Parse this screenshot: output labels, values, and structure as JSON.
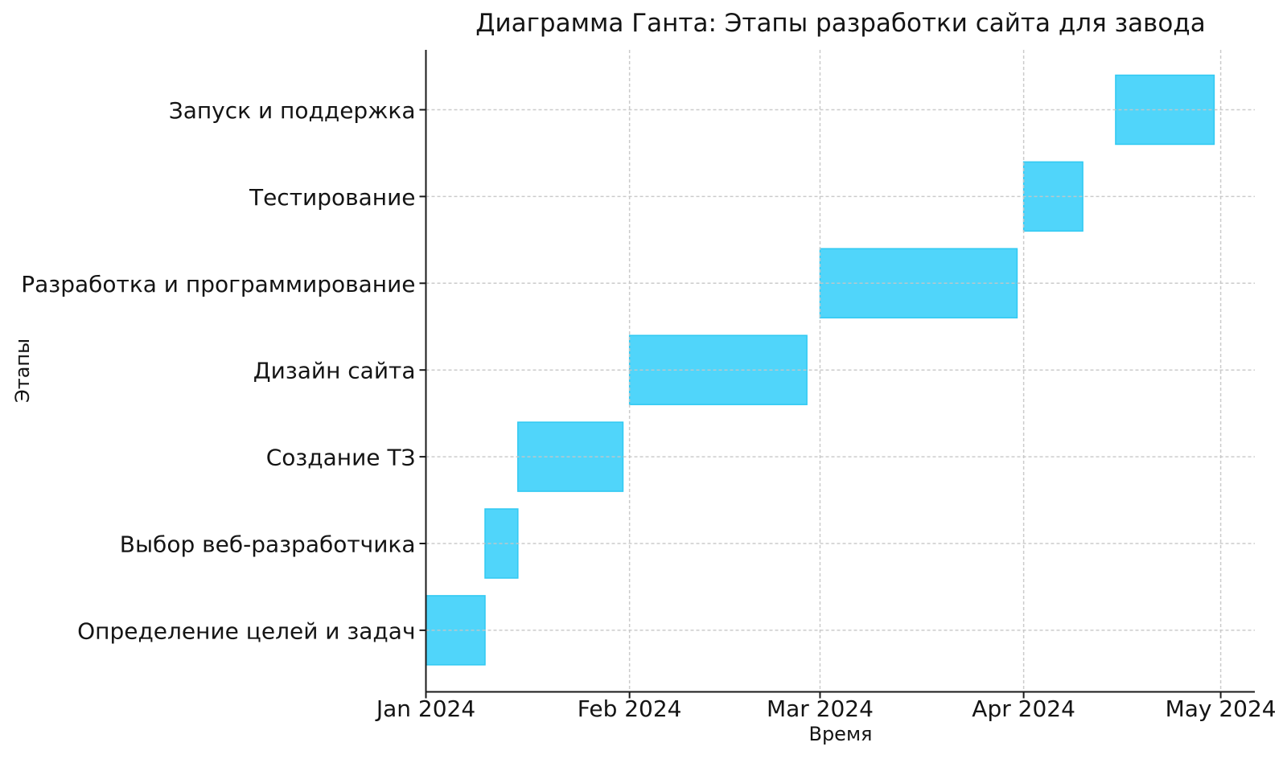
{
  "chart_data": {
    "type": "bar",
    "subtype": "gantt",
    "orientation": "horizontal",
    "title": "Диаграмма Ганта: Этапы разработки сайта для завода",
    "xlabel": "Время",
    "ylabel": "Этапы",
    "grid": "dashed, drawn above bars, vertical at month ticks and horizontal at row centers",
    "legend": "none",
    "x_axis": {
      "start": "2024-01-01",
      "end": "2024-05-06",
      "ticks": [
        {
          "date": "2024-01-01",
          "label": "Jan 2024"
        },
        {
          "date": "2024-02-01",
          "label": "Feb 2024"
        },
        {
          "date": "2024-03-01",
          "label": "Mar 2024"
        },
        {
          "date": "2024-04-01",
          "label": "Apr 2024"
        },
        {
          "date": "2024-05-01",
          "label": "May 2024"
        }
      ]
    },
    "categories_top_to_bottom": [
      "Запуск и поддержка",
      "Тестирование",
      "Разработка и программирование",
      "Дизайн сайта",
      "Создание ТЗ",
      "Выбор веб-разработчика",
      "Определение целей и задач"
    ],
    "tasks": [
      {
        "label": "Запуск и поддержка",
        "start": "2024-04-15",
        "end": "2024-04-30"
      },
      {
        "label": "Тестирование",
        "start": "2024-04-01",
        "end": "2024-04-10"
      },
      {
        "label": "Разработка и программирование",
        "start": "2024-03-01",
        "end": "2024-03-31"
      },
      {
        "label": "Дизайн сайта",
        "start": "2024-02-01",
        "end": "2024-02-28"
      },
      {
        "label": "Создание ТЗ",
        "start": "2024-01-15",
        "end": "2024-01-31"
      },
      {
        "label": "Выбор веб-разработчика",
        "start": "2024-01-10",
        "end": "2024-01-15"
      },
      {
        "label": "Определение целей и задач",
        "start": "2024-01-01",
        "end": "2024-01-10"
      }
    ],
    "colors": {
      "bar_fill": "#50D5FA",
      "bar_edge": "#30C9F2",
      "grid": "#C6C6C6",
      "axis": "#1A1A1A",
      "text": "#141414",
      "background": "#FFFFFF"
    }
  }
}
